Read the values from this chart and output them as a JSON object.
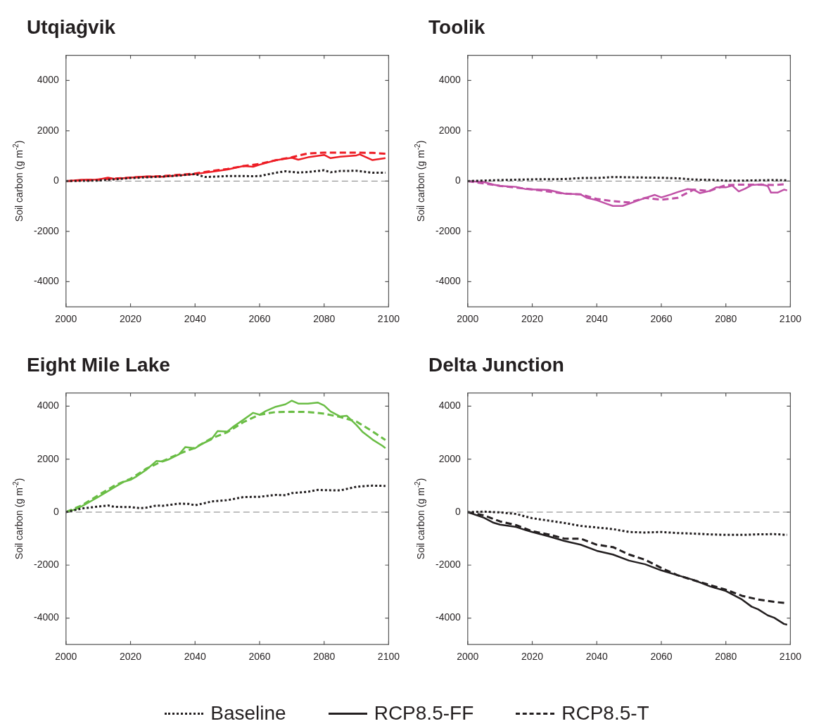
{
  "chart_data": [
    {
      "type": "line",
      "title": "Utqiaġvik",
      "ylabel": "Soil carbon (g m$^{-2}$)",
      "xlim": [
        2000,
        2100
      ],
      "xticks": [
        2000,
        2020,
        2040,
        2060,
        2080,
        2100
      ],
      "ylim": [
        -5000,
        5000
      ],
      "yticks": [
        -4000,
        -2000,
        0,
        2000,
        4000
      ],
      "marker": "none",
      "ref_lines": [
        {
          "axis": "y",
          "value": 0,
          "color": "#808080",
          "line_style": "dashed"
        }
      ],
      "series": [
        {
          "color": "#231f20",
          "line_style": "dotted",
          "x": [
            2000,
            2010,
            2020,
            2030,
            2035,
            2040,
            2043,
            2045,
            2050,
            2055,
            2058,
            2060,
            2065,
            2068,
            2072,
            2075,
            2080,
            2082,
            2085,
            2090,
            2095,
            2099
          ],
          "values": [
            0,
            20,
            120,
            180,
            220,
            280,
            165,
            170,
            200,
            200,
            190,
            200,
            330,
            390,
            340,
            360,
            430,
            350,
            400,
            410,
            330,
            330
          ]
        },
        {
          "color": "#ed1c24",
          "line_style": "solid",
          "x": [
            2000,
            2005,
            2010,
            2013,
            2015,
            2020,
            2025,
            2030,
            2035,
            2040,
            2045,
            2050,
            2055,
            2058,
            2060,
            2065,
            2070,
            2072,
            2075,
            2080,
            2082,
            2085,
            2090,
            2091,
            2095,
            2099
          ],
          "values": [
            0,
            50,
            60,
            140,
            90,
            140,
            185,
            170,
            230,
            280,
            370,
            460,
            600,
            570,
            650,
            830,
            925,
            850,
            945,
            1040,
            910,
            970,
            1020,
            1065,
            835,
            910
          ]
        },
        {
          "color": "#ed1c24",
          "line_style": "dashed",
          "x": [
            2000,
            2010,
            2020,
            2030,
            2040,
            2045,
            2050,
            2055,
            2060,
            2065,
            2070,
            2075,
            2080,
            2085,
            2090,
            2095,
            2099
          ],
          "values": [
            0,
            60,
            140,
            200,
            300,
            400,
            480,
            600,
            680,
            830,
            950,
            1100,
            1130,
            1130,
            1130,
            1120,
            1090
          ]
        }
      ]
    },
    {
      "type": "line",
      "title": "Toolik",
      "ylabel": "Soil carbon (g m$^{-2}$)",
      "xlim": [
        2000,
        2100
      ],
      "xticks": [
        2000,
        2020,
        2040,
        2060,
        2080,
        2100
      ],
      "ylim": [
        -5000,
        5000
      ],
      "yticks": [
        -4000,
        -2000,
        0,
        2000,
        4000
      ],
      "marker": "none",
      "ref_lines": [
        {
          "axis": "y",
          "value": 0,
          "color": "#808080",
          "line_style": "dashed"
        }
      ],
      "series": [
        {
          "color": "#231f20",
          "line_style": "dotted",
          "x": [
            2000,
            2010,
            2020,
            2030,
            2035,
            2040,
            2045,
            2050,
            2055,
            2060,
            2065,
            2070,
            2075,
            2080,
            2085,
            2090,
            2095,
            2099
          ],
          "values": [
            0,
            40,
            70,
            80,
            120,
            120,
            160,
            150,
            140,
            130,
            110,
            60,
            50,
            20,
            20,
            30,
            40,
            30
          ]
        },
        {
          "color": "#c050a6",
          "line_style": "solid",
          "x": [
            2000,
            2005,
            2008,
            2010,
            2015,
            2018,
            2020,
            2025,
            2030,
            2035,
            2037,
            2040,
            2043,
            2045,
            2048,
            2050,
            2053,
            2055,
            2058,
            2060,
            2063,
            2065,
            2068,
            2070,
            2072,
            2075,
            2077,
            2080,
            2082,
            2084,
            2086,
            2088,
            2091,
            2093,
            2094,
            2096,
            2098,
            2099
          ],
          "values": [
            0,
            -40,
            -140,
            -190,
            -230,
            -320,
            -330,
            -350,
            -500,
            -530,
            -670,
            -760,
            -900,
            -990,
            -990,
            -900,
            -760,
            -670,
            -550,
            -650,
            -530,
            -440,
            -320,
            -340,
            -480,
            -390,
            -250,
            -250,
            -180,
            -410,
            -300,
            -160,
            -130,
            -200,
            -460,
            -460,
            -340,
            -370
          ]
        },
        {
          "color": "#c050a6",
          "line_style": "dashed",
          "x": [
            2000,
            2010,
            2020,
            2030,
            2035,
            2040,
            2045,
            2050,
            2055,
            2060,
            2065,
            2070,
            2075,
            2080,
            2085,
            2090,
            2095,
            2098
          ],
          "values": [
            0,
            -190,
            -330,
            -500,
            -530,
            -710,
            -800,
            -850,
            -670,
            -740,
            -670,
            -340,
            -390,
            -160,
            -140,
            -140,
            -160,
            -130
          ]
        }
      ]
    },
    {
      "type": "line",
      "title": "Eight Mile Lake",
      "ylabel": "Soil carbon (g m$^{-2}$)",
      "xlim": [
        2000,
        2100
      ],
      "xticks": [
        2000,
        2020,
        2040,
        2060,
        2080,
        2100
      ],
      "ylim": [
        -5000,
        4500
      ],
      "yticks": [
        -4000,
        -2000,
        0,
        2000,
        4000
      ],
      "marker": "none",
      "ref_lines": [
        {
          "axis": "y",
          "value": 0,
          "color": "#808080",
          "line_style": "dashed"
        }
      ],
      "series": [
        {
          "color": "#231f20",
          "line_style": "dotted",
          "x": [
            2000,
            2005,
            2010,
            2013,
            2015,
            2020,
            2023,
            2025,
            2028,
            2030,
            2035,
            2038,
            2040,
            2043,
            2045,
            2050,
            2055,
            2060,
            2065,
            2068,
            2070,
            2075,
            2078,
            2080,
            2085,
            2090,
            2093,
            2095,
            2099
          ],
          "values": [
            0,
            140,
            210,
            250,
            200,
            190,
            150,
            170,
            250,
            240,
            320,
            310,
            260,
            340,
            400,
            450,
            570,
            580,
            650,
            640,
            720,
            770,
            840,
            830,
            820,
            960,
            990,
            1000,
            990
          ]
        },
        {
          "color": "#6abd45",
          "line_style": "solid",
          "x": [
            2000,
            2003,
            2005,
            2010,
            2015,
            2018,
            2020,
            2022,
            2025,
            2028,
            2030,
            2032,
            2035,
            2037,
            2040,
            2042,
            2045,
            2047,
            2050,
            2052,
            2055,
            2058,
            2060,
            2062,
            2065,
            2068,
            2070,
            2072,
            2075,
            2078,
            2080,
            2082,
            2085,
            2087,
            2090,
            2092,
            2095,
            2098,
            2099
          ],
          "values": [
            0,
            110,
            230,
            570,
            940,
            1150,
            1220,
            1360,
            1610,
            1930,
            1910,
            2000,
            2180,
            2460,
            2410,
            2570,
            2740,
            3060,
            3040,
            3240,
            3490,
            3750,
            3680,
            3820,
            3980,
            4070,
            4210,
            4100,
            4100,
            4140,
            4030,
            3800,
            3610,
            3640,
            3290,
            3020,
            2740,
            2510,
            2420
          ]
        },
        {
          "color": "#6abd45",
          "line_style": "dashed",
          "x": [
            2000,
            2005,
            2010,
            2015,
            2020,
            2025,
            2030,
            2035,
            2040,
            2045,
            2050,
            2055,
            2060,
            2065,
            2070,
            2075,
            2080,
            2085,
            2090,
            2095,
            2099
          ],
          "values": [
            0,
            260,
            640,
            1000,
            1260,
            1650,
            1930,
            2200,
            2430,
            2780,
            3020,
            3400,
            3680,
            3780,
            3790,
            3780,
            3720,
            3590,
            3420,
            3050,
            2720
          ]
        }
      ]
    },
    {
      "type": "line",
      "title": "Delta Junction",
      "ylabel": "Soil carbon (g m$^{-2}$)",
      "xlim": [
        2000,
        2100
      ],
      "xticks": [
        2000,
        2020,
        2040,
        2060,
        2080,
        2100
      ],
      "ylim": [
        -5000,
        4500
      ],
      "yticks": [
        -4000,
        -2000,
        0,
        2000,
        4000
      ],
      "marker": "none",
      "legend": "bottom",
      "ref_lines": [
        {
          "axis": "y",
          "value": 0,
          "color": "#808080",
          "line_style": "dashed"
        }
      ],
      "series": [
        {
          "name": "Baseline",
          "color": "#231f20",
          "line_style": "dotted",
          "x": [
            2000,
            2005,
            2010,
            2015,
            2020,
            2025,
            2030,
            2035,
            2040,
            2045,
            2050,
            2055,
            2060,
            2065,
            2070,
            2075,
            2080,
            2085,
            2090,
            2095,
            2099
          ],
          "values": [
            0,
            20,
            -10,
            -70,
            -230,
            -320,
            -410,
            -520,
            -580,
            -640,
            -750,
            -770,
            -750,
            -790,
            -810,
            -840,
            -860,
            -860,
            -840,
            -830,
            -860
          ]
        },
        {
          "name": "RCP8.5-FF",
          "color": "#231f20",
          "line_style": "solid",
          "x": [
            2000,
            2005,
            2008,
            2010,
            2015,
            2018,
            2020,
            2025,
            2030,
            2035,
            2040,
            2045,
            2050,
            2055,
            2060,
            2065,
            2070,
            2075,
            2080,
            2085,
            2088,
            2090,
            2093,
            2095,
            2098,
            2099
          ],
          "values": [
            0,
            -210,
            -400,
            -470,
            -560,
            -680,
            -750,
            -910,
            -1090,
            -1230,
            -1460,
            -1600,
            -1830,
            -1970,
            -2200,
            -2380,
            -2560,
            -2800,
            -2980,
            -3300,
            -3570,
            -3670,
            -3900,
            -3990,
            -4220,
            -4250
          ]
        },
        {
          "name": "RCP8.5-T",
          "color": "#231f20",
          "line_style": "dashed",
          "x": [
            2000,
            2005,
            2010,
            2015,
            2020,
            2025,
            2030,
            2035,
            2040,
            2045,
            2050,
            2055,
            2060,
            2065,
            2070,
            2075,
            2080,
            2085,
            2090,
            2095,
            2099
          ],
          "values": [
            0,
            -120,
            -350,
            -490,
            -720,
            -840,
            -1000,
            -1000,
            -1230,
            -1320,
            -1600,
            -1800,
            -2110,
            -2380,
            -2570,
            -2750,
            -2930,
            -3160,
            -3300,
            -3390,
            -3440
          ]
        }
      ]
    }
  ]
}
